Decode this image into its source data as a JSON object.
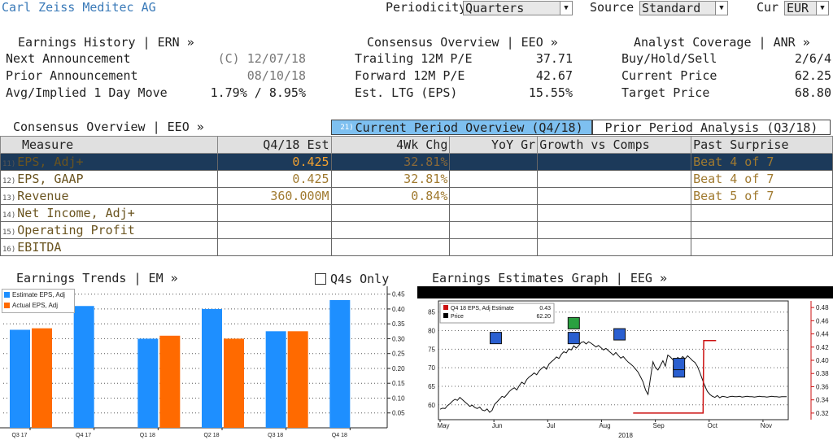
{
  "company": "Carl Zeiss Meditec AG",
  "controls": {
    "periodicity_label": "Periodicity",
    "periodicity_value": "Quarters",
    "source_label": "Source",
    "source_value": "Standard",
    "cur_label": "Cur",
    "cur_value": "EUR"
  },
  "earnings_history": {
    "title": "Earnings History | ERN »",
    "rows": [
      {
        "label": "Next Announcement",
        "value": "(C)  12/07/18"
      },
      {
        "label": "Prior Announcement",
        "value": "08/10/18"
      },
      {
        "label": "Avg/Implied 1 Day Move",
        "value": "1.79% / 8.95%"
      }
    ]
  },
  "consensus_overview_top": {
    "title": "Consensus Overview | EEO »",
    "rows": [
      {
        "label": "Trailing 12M P/E",
        "value": "37.71"
      },
      {
        "label": "Forward 12M P/E",
        "value": "42.67"
      },
      {
        "label": "Est. LTG (EPS)",
        "value": "15.55%"
      }
    ]
  },
  "analyst_coverage": {
    "title": "Analyst Coverage | ANR »",
    "rows": [
      {
        "label": "Buy/Hold/Sell",
        "value": "2/6/4"
      },
      {
        "label": "Current Price",
        "value": "62.25"
      },
      {
        "label": "Target Price",
        "value": "68.80"
      }
    ]
  },
  "consensus_overview": {
    "title": "Consensus Overview | EEO »",
    "tab_current_num": "21)",
    "tab_current": "Current Period Overview (Q4/18)",
    "tab_prior": "Prior Period Analysis (Q3/18)",
    "headers": [
      "Measure",
      "Q4/18 Est",
      "4Wk Chg",
      "YoY Gr",
      "Growth vs Comps",
      "Past Surprise"
    ],
    "rows": [
      {
        "num": "11)",
        "measure": "EPS, Adj+",
        "est": "0.425",
        "chg": "32.81%",
        "yoy": "",
        "comps": "",
        "surprise": "Beat 4 of 7"
      },
      {
        "num": "12)",
        "measure": "EPS, GAAP",
        "est": "0.425",
        "chg": "32.81%",
        "yoy": "",
        "comps": "",
        "surprise": "Beat 4 of 7"
      },
      {
        "num": "13)",
        "measure": "Revenue",
        "est": "360.000M",
        "chg": "0.84%",
        "yoy": "",
        "comps": "",
        "surprise": "Beat 5 of 7"
      },
      {
        "num": "14)",
        "measure": "Net Income, Adj+",
        "est": "",
        "chg": "",
        "yoy": "",
        "comps": "",
        "surprise": ""
      },
      {
        "num": "15)",
        "measure": "Operating Profit",
        "est": "",
        "chg": "",
        "yoy": "",
        "comps": "",
        "surprise": ""
      },
      {
        "num": "16)",
        "measure": "EBITDA",
        "est": "",
        "chg": "",
        "yoy": "",
        "comps": "",
        "surprise": ""
      }
    ]
  },
  "earnings_trends": {
    "title": "Earnings Trends | EM »",
    "q4s_label": "Q4s Only"
  },
  "earnings_estimates": {
    "title": "Earnings Estimates Graph | EEG »"
  },
  "colors": {
    "estimate": "#1e8fff",
    "actual": "#ff6a00",
    "price": "#000000",
    "adj_est": "#cc1111",
    "highlight": "#1c3a5a",
    "gold": "#a07a30"
  },
  "chart_data": [
    {
      "type": "bar",
      "categories": [
        "Q3 17",
        "Q4 17",
        "Q1 18",
        "Q2 18",
        "Q3 18",
        "Q4 18"
      ],
      "series": [
        {
          "name": "Estimate EPS, Adj",
          "values": [
            0.33,
            0.41,
            0.3,
            0.4,
            0.325,
            0.43
          ]
        },
        {
          "name": "Actual EPS, Adj",
          "values": [
            0.335,
            null,
            0.31,
            0.3,
            0.325,
            null
          ]
        }
      ],
      "yticks": [
        "0.05",
        "0.10",
        "0.15",
        "0.20",
        "0.25",
        "0.30",
        "0.35",
        "0.40",
        "0.45"
      ],
      "ylim": [
        0,
        0.46
      ]
    },
    {
      "type": "line",
      "legend": [
        {
          "name": "Q4 18 EPS, Adj Estimate",
          "value": "0.43"
        },
        {
          "name": "Price",
          "value": "62.20"
        }
      ],
      "x_labels": [
        "May",
        "Jun",
        "Jul",
        "Aug",
        "Sep",
        "Oct",
        "Nov"
      ],
      "year_label": "2018",
      "left_yticks": [
        "60",
        "65",
        "70",
        "75",
        "80",
        "85"
      ],
      "right_yticks": [
        "0.32",
        "0.34",
        "0.36",
        "0.38",
        "0.40",
        "0.42",
        "0.44",
        "0.46",
        "0.48"
      ],
      "ylim_left": [
        56,
        88
      ],
      "ylim_right": [
        0.31,
        0.49
      ],
      "series": [
        {
          "name": "Price",
          "axis": "left",
          "x": [
            0,
            4,
            8,
            12,
            16,
            20,
            24,
            28,
            32,
            36,
            40,
            44,
            48,
            52,
            56,
            60,
            64,
            68,
            72,
            76,
            80,
            84,
            88,
            92,
            96,
            100,
            104,
            108,
            112,
            116,
            120,
            124,
            128,
            132,
            136,
            140,
            144,
            148,
            152,
            156,
            160,
            164,
            168,
            172,
            176,
            180,
            184,
            188,
            192,
            196,
            200,
            204,
            208,
            212,
            216,
            220,
            224,
            228,
            232,
            236,
            240,
            244,
            248,
            252,
            256,
            260,
            264,
            268,
            272,
            276,
            280,
            284,
            288,
            292,
            296,
            300,
            304,
            308,
            312,
            316,
            320,
            324,
            328,
            332,
            336,
            340,
            344,
            348,
            352,
            356,
            360,
            364,
            368,
            372,
            376,
            380,
            384,
            388,
            392,
            396,
            400,
            404,
            408,
            412,
            416,
            420,
            424,
            428,
            432,
            436,
            440,
            444,
            448,
            452,
            456,
            460,
            464,
            468,
            472,
            476,
            480,
            484,
            488,
            492,
            496,
            500,
            504,
            508,
            512,
            516,
            520,
            524,
            528,
            532,
            536,
            540,
            544,
            548,
            552,
            556,
            560
          ],
          "y": [
            58.8,
            59.1,
            59.0,
            59.8,
            60.3,
            61.0,
            61.5,
            61.2,
            62.0,
            61.4,
            60.8,
            60.2,
            59.6,
            59.9,
            59.3,
            59.0,
            59.4,
            58.6,
            58.4,
            58.9,
            58.0,
            58.5,
            60.1,
            60.8,
            61.5,
            62.3,
            62.0,
            62.8,
            63.6,
            64.2,
            64.6,
            64.0,
            65.2,
            66.1,
            65.6,
            66.8,
            67.5,
            68.0,
            68.6,
            68.1,
            69.1,
            69.8,
            70.3,
            69.6,
            71.0,
            71.6,
            72.2,
            72.9,
            72.5,
            73.6,
            74.3,
            74.0,
            75.1,
            74.8,
            75.9,
            75.3,
            76.0,
            76.8,
            77.0,
            76.4,
            77.0,
            76.6,
            76.1,
            75.6,
            76.0,
            75.4,
            74.8,
            75.2,
            74.6,
            74.0,
            73.4,
            74.1,
            73.3,
            72.6,
            73.0,
            72.2,
            71.5,
            71.0,
            70.4,
            69.6,
            68.8,
            67.5,
            66.2,
            64.0,
            62.8,
            67.2,
            71.6,
            70.0,
            69.4,
            70.6,
            71.9,
            70.4,
            73.4,
            72.9,
            72.2,
            71.6,
            72.8,
            72.2,
            73.0,
            72.4,
            73.2,
            72.6,
            71.9,
            71.4,
            70.3,
            68.6,
            66.8,
            65.0,
            63.6,
            62.8,
            62.3,
            62.0,
            62.5,
            61.9,
            62.3,
            62.2,
            62.0,
            62.2,
            62.3,
            62.2,
            62.2,
            62.3,
            62.1,
            62.2,
            62.3,
            62.2,
            62.2,
            62.1,
            62.2,
            62.3,
            62.2,
            62.2,
            62.1,
            62.2,
            62.3,
            62.2,
            62.2,
            62.1,
            62.2,
            62.2,
            62.2
          ]
        },
        {
          "name": "Q4 18 EPS, Adj Estimate",
          "axis": "right",
          "x": [
            312,
            320,
            328,
            332,
            332,
            336,
            336,
            360,
            390,
            412,
            425,
            426,
            446
          ],
          "y": [
            0.32,
            0.32,
            0.32,
            0.32,
            0.32,
            0.32,
            0.32,
            0.32,
            0.32,
            0.32,
            0.32,
            0.43,
            0.43
          ]
        }
      ]
    }
  ]
}
